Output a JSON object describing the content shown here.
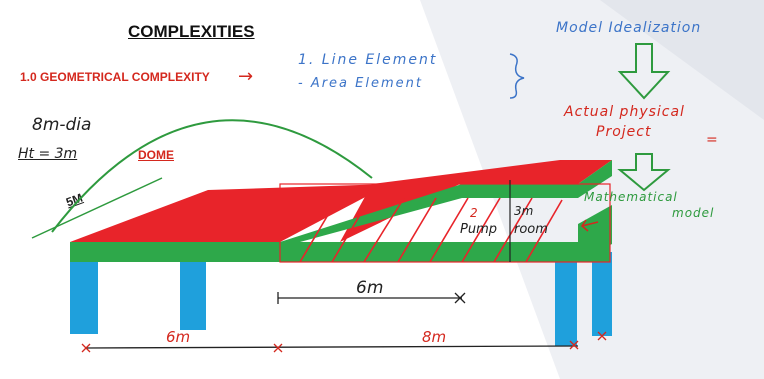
{
  "title": "COMPLEXITIES",
  "section_heading": "1.0 GEOMETRICAL COMPLEXITY",
  "arrow_glyph": "→",
  "element_list": {
    "item_1": "1.  Line Element",
    "item_2": "-  Area Element"
  },
  "dome": {
    "label": "DOME",
    "diameter": "8m-dia",
    "height": "Ht = 3m",
    "span": "5M"
  },
  "pump_room": {
    "index": "2",
    "label_left": "Pump",
    "label_right": "room",
    "height": "3m"
  },
  "dimensions": {
    "mid": "6m",
    "bottom_left": "6m",
    "bottom_right": "8m"
  },
  "flow": {
    "top": "Model Idealization",
    "middle_line1": "Actual physical",
    "middle_line2": "Project",
    "equals": "=",
    "bottom_line1": "Mathematical",
    "bottom_line2": "model"
  },
  "colors": {
    "slab_red": "#e8242a",
    "beam_green": "#2ea84a",
    "column_blue": "#1fa0dc",
    "annotation_blue": "#3c74c8",
    "annotation_green": "#2e9a3e",
    "annotation_red": "#d4281e"
  }
}
